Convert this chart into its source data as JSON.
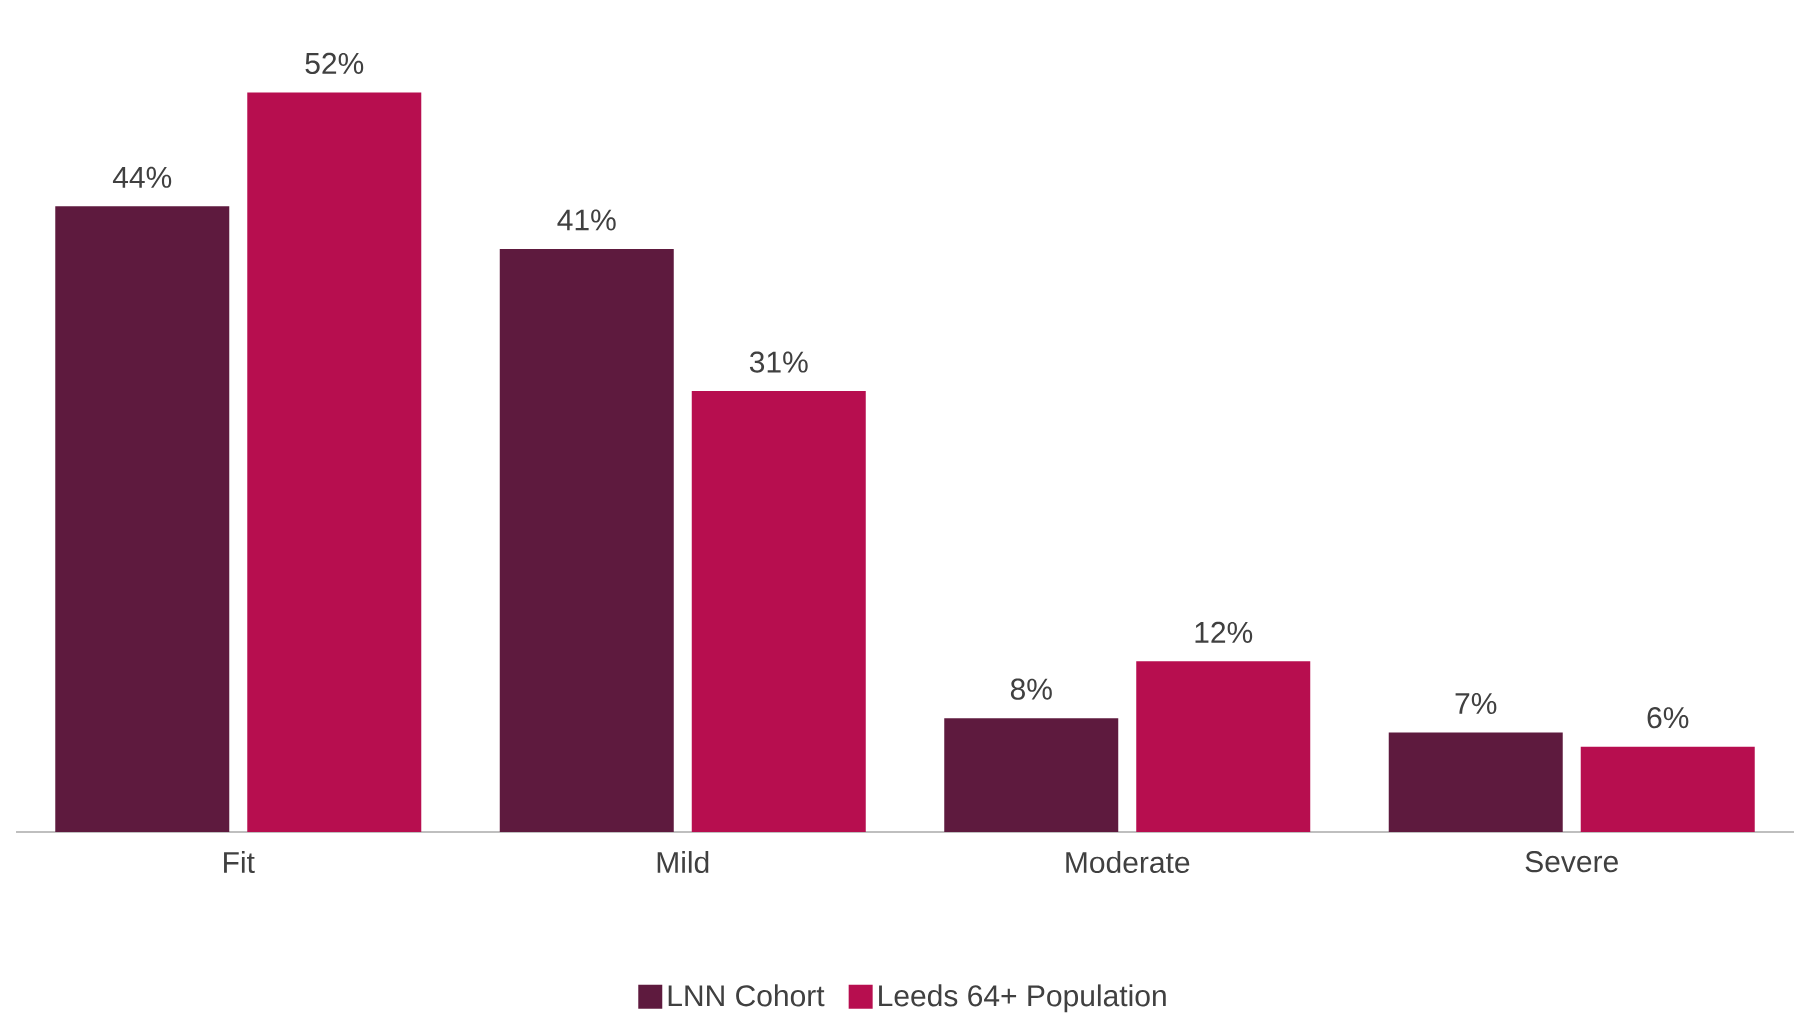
{
  "chart_data": {
    "type": "bar",
    "categories": [
      "Fit",
      "Mild",
      "Moderate",
      "Severe"
    ],
    "series": [
      {
        "name": "LNN Cohort",
        "color": "#5e1a3e",
        "values": [
          44,
          41,
          8,
          7
        ],
        "value_labels": [
          "44%",
          "41%",
          "8%",
          "7%"
        ]
      },
      {
        "name": "Leeds 64+ Population",
        "color": "#b70e4f",
        "values": [
          52,
          31,
          12,
          6
        ],
        "value_labels": [
          "52%",
          "31%",
          "12%",
          "6%"
        ]
      }
    ],
    "legend": "bottom"
  }
}
